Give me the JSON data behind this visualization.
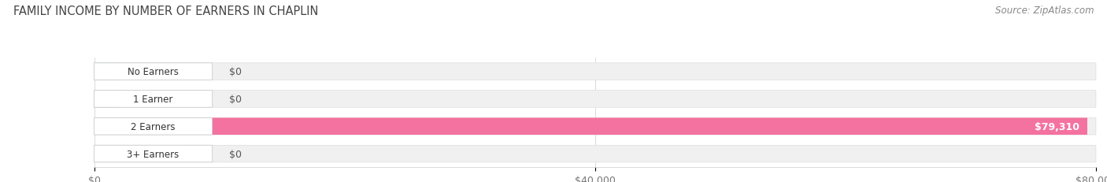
{
  "title": "FAMILY INCOME BY NUMBER OF EARNERS IN CHAPLIN",
  "source": "Source: ZipAtlas.com",
  "categories": [
    "No Earners",
    "1 Earner",
    "2 Earners",
    "3+ Earners"
  ],
  "values": [
    0,
    0,
    79310,
    0
  ],
  "max_value": 80000,
  "bar_colors": [
    "#6ecfd4",
    "#a8a8d8",
    "#f472a0",
    "#f5c98a"
  ],
  "bar_bg_color": "#f0f0f0",
  "bar_labels": [
    "$0",
    "$0",
    "$79,310",
    "$0"
  ],
  "xtick_labels": [
    "$0",
    "$40,000",
    "$80,000"
  ],
  "xtick_values": [
    0,
    40000,
    80000
  ],
  "title_fontsize": 10.5,
  "source_fontsize": 8.5,
  "label_fontsize": 9,
  "bar_height": 0.62,
  "background_color": "#ffffff"
}
